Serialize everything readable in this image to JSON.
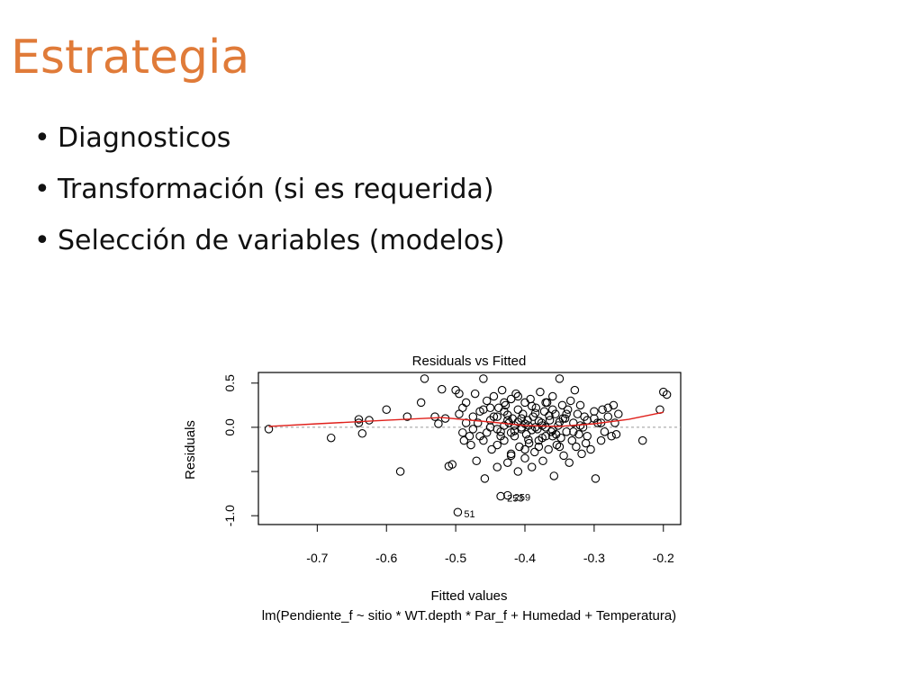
{
  "slide": {
    "title": "Estrategia",
    "bullets": [
      "Diagnosticos",
      "Transformación (si es requerida)",
      "Selección de variables (modelos)"
    ]
  },
  "colors": {
    "title": "#E07B39",
    "smooth": "#E0201B",
    "points": "#000000",
    "zero_line": "#9A9A9A"
  },
  "chart_data": {
    "type": "scatter",
    "title": "Residuals vs Fitted",
    "xlabel": "Fitted values",
    "ylabel": "Residuals",
    "subtitle": "lm(Pendiente_f ~ sitio * WT.depth * Par_f + Humedad + Temperatura)",
    "xlim": [
      -0.785,
      -0.175
    ],
    "ylim": [
      -1.1,
      0.62
    ],
    "x_ticks": [
      -0.7,
      -0.6,
      -0.5,
      -0.4,
      -0.3,
      -0.2
    ],
    "x_tick_labels": [
      "-0.7",
      "-0.6",
      "-0.5",
      "-0.4",
      "-0.3",
      "-0.2"
    ],
    "y_ticks": [
      -1.0,
      -0.5,
      0.0,
      0.5
    ],
    "y_tick_labels": [
      "-1.0",
      "",
      "0.0",
      "0.5"
    ],
    "zero_line": 0.0,
    "smoother": {
      "x": [
        -0.77,
        -0.7,
        -0.6,
        -0.52,
        -0.45,
        -0.4,
        -0.35,
        -0.3,
        -0.25,
        -0.2
      ],
      "y": [
        0.01,
        0.04,
        0.08,
        0.11,
        0.06,
        0.02,
        0.01,
        0.04,
        0.09,
        0.17
      ]
    },
    "labeled_points": [
      {
        "label": "51",
        "x": -0.497,
        "y": -0.96
      },
      {
        "label": "253",
        "x": -0.435,
        "y": -0.78
      },
      {
        "label": "259",
        "x": -0.425,
        "y": -0.77
      }
    ],
    "points": [
      [
        -0.77,
        -0.02
      ],
      [
        -0.68,
        -0.12
      ],
      [
        -0.64,
        0.09
      ],
      [
        -0.64,
        0.05
      ],
      [
        -0.635,
        -0.07
      ],
      [
        -0.625,
        0.08
      ],
      [
        -0.6,
        0.2
      ],
      [
        -0.58,
        -0.5
      ],
      [
        -0.57,
        0.12
      ],
      [
        -0.55,
        0.28
      ],
      [
        -0.545,
        0.55
      ],
      [
        -0.53,
        0.12
      ],
      [
        -0.525,
        0.04
      ],
      [
        -0.52,
        0.43
      ],
      [
        -0.515,
        0.1
      ],
      [
        -0.51,
        -0.44
      ],
      [
        -0.505,
        -0.42
      ],
      [
        -0.5,
        0.42
      ],
      [
        -0.495,
        0.38
      ],
      [
        -0.495,
        0.15
      ],
      [
        -0.49,
        0.22
      ],
      [
        -0.49,
        -0.06
      ],
      [
        -0.488,
        -0.15
      ],
      [
        -0.485,
        0.05
      ],
      [
        -0.48,
        -0.1
      ],
      [
        -0.478,
        -0.2
      ],
      [
        -0.475,
        0.12
      ],
      [
        -0.472,
        0.38
      ],
      [
        -0.47,
        -0.38
      ],
      [
        -0.468,
        0.05
      ],
      [
        -0.465,
        -0.1
      ],
      [
        -0.46,
        0.2
      ],
      [
        -0.46,
        0.55
      ],
      [
        -0.458,
        -0.58
      ],
      [
        -0.455,
        0.3
      ],
      [
        -0.45,
        0.0
      ],
      [
        -0.448,
        -0.25
      ],
      [
        -0.445,
        0.35
      ],
      [
        -0.44,
        0.12
      ],
      [
        -0.44,
        -0.45
      ],
      [
        -0.438,
        0.22
      ],
      [
        -0.435,
        -0.05
      ],
      [
        -0.433,
        0.42
      ],
      [
        -0.43,
        0.18
      ],
      [
        -0.43,
        -0.15
      ],
      [
        -0.428,
        0.25
      ],
      [
        -0.425,
        -0.4
      ],
      [
        -0.423,
        0.05
      ],
      [
        -0.42,
        0.32
      ],
      [
        -0.42,
        -0.3
      ],
      [
        -0.418,
        0.1
      ],
      [
        -0.415,
        -0.1
      ],
      [
        -0.413,
        0.38
      ],
      [
        -0.41,
        -0.5
      ],
      [
        -0.41,
        0.2
      ],
      [
        -0.408,
        -0.22
      ],
      [
        -0.405,
        0.0
      ],
      [
        -0.403,
        0.15
      ],
      [
        -0.4,
        -0.35
      ],
      [
        -0.4,
        0.28
      ],
      [
        -0.398,
        -0.08
      ],
      [
        -0.396,
        0.08
      ],
      [
        -0.394,
        -0.18
      ],
      [
        -0.392,
        0.32
      ],
      [
        -0.39,
        -0.45
      ],
      [
        -0.388,
        0.12
      ],
      [
        -0.386,
        -0.28
      ],
      [
        -0.384,
        0.22
      ],
      [
        -0.382,
        -0.02
      ],
      [
        -0.38,
        -0.15
      ],
      [
        -0.378,
        0.4
      ],
      [
        -0.376,
        0.05
      ],
      [
        -0.374,
        -0.38
      ],
      [
        -0.372,
        0.18
      ],
      [
        -0.37,
        -0.1
      ],
      [
        -0.368,
        0.28
      ],
      [
        -0.366,
        -0.25
      ],
      [
        -0.364,
        0.08
      ],
      [
        -0.362,
        -0.05
      ],
      [
        -0.36,
        0.35
      ],
      [
        -0.358,
        -0.55
      ],
      [
        -0.356,
        0.15
      ],
      [
        -0.354,
        -0.2
      ],
      [
        -0.352,
        0.02
      ],
      [
        -0.35,
        0.55
      ],
      [
        -0.348,
        -0.12
      ],
      [
        -0.346,
        0.25
      ],
      [
        -0.344,
        -0.32
      ],
      [
        -0.342,
        0.1
      ],
      [
        -0.34,
        -0.05
      ],
      [
        -0.338,
        0.2
      ],
      [
        -0.336,
        -0.4
      ],
      [
        -0.334,
        0.3
      ],
      [
        -0.332,
        -0.15
      ],
      [
        -0.33,
        0.05
      ],
      [
        -0.328,
        0.42
      ],
      [
        -0.326,
        -0.22
      ],
      [
        -0.324,
        0.15
      ],
      [
        -0.322,
        -0.08
      ],
      [
        -0.32,
        0.25
      ],
      [
        -0.318,
        -0.3
      ],
      [
        -0.316,
        0.0
      ],
      [
        -0.314,
        0.12
      ],
      [
        -0.312,
        -0.18
      ],
      [
        -0.31,
        0.08
      ],
      [
        -0.305,
        -0.25
      ],
      [
        -0.3,
        0.1
      ],
      [
        -0.298,
        -0.58
      ],
      [
        -0.295,
        0.05
      ],
      [
        -0.29,
        -0.15
      ],
      [
        -0.288,
        0.2
      ],
      [
        -0.285,
        -0.05
      ],
      [
        -0.28,
        0.12
      ],
      [
        -0.275,
        -0.1
      ],
      [
        -0.272,
        0.25
      ],
      [
        -0.27,
        0.05
      ],
      [
        -0.268,
        -0.08
      ],
      [
        -0.265,
        0.15
      ],
      [
        -0.23,
        -0.15
      ],
      [
        -0.205,
        0.2
      ],
      [
        -0.2,
        0.4
      ],
      [
        -0.195,
        0.37
      ],
      [
        -0.45,
        0.08
      ],
      [
        -0.44,
        -0.02
      ],
      [
        -0.43,
        0.02
      ],
      [
        -0.42,
        -0.06
      ],
      [
        -0.41,
        0.06
      ],
      [
        -0.4,
        0.04
      ],
      [
        -0.39,
        -0.03
      ],
      [
        -0.38,
        0.07
      ],
      [
        -0.37,
        0.0
      ],
      [
        -0.36,
        -0.03
      ],
      [
        -0.35,
        0.06
      ],
      [
        -0.345,
        0.1
      ],
      [
        -0.355,
        -0.08
      ],
      [
        -0.365,
        0.13
      ],
      [
        -0.375,
        -0.12
      ],
      [
        -0.385,
        0.16
      ],
      [
        -0.395,
        -0.14
      ],
      [
        -0.405,
        0.1
      ],
      [
        -0.415,
        0.02
      ],
      [
        -0.425,
        0.08
      ],
      [
        -0.435,
        -0.1
      ],
      [
        -0.445,
        0.12
      ],
      [
        -0.455,
        -0.06
      ],
      [
        -0.465,
        0.18
      ],
      [
        -0.475,
        -0.02
      ],
      [
        -0.485,
        0.28
      ],
      [
        -0.395,
        0.02
      ],
      [
        -0.405,
        -0.02
      ],
      [
        -0.385,
        0.0
      ],
      [
        -0.375,
        0.02
      ],
      [
        -0.415,
        -0.04
      ],
      [
        -0.425,
        0.14
      ],
      [
        -0.36,
        0.2
      ],
      [
        -0.34,
        0.15
      ],
      [
        -0.33,
        -0.05
      ],
      [
        -0.32,
        0.02
      ],
      [
        -0.31,
        -0.1
      ],
      [
        -0.3,
        0.18
      ],
      [
        -0.29,
        0.05
      ],
      [
        -0.28,
        0.22
      ],
      [
        -0.35,
        -0.22
      ],
      [
        -0.36,
        -0.1
      ],
      [
        -0.37,
        0.28
      ],
      [
        -0.38,
        -0.22
      ],
      [
        -0.39,
        0.24
      ],
      [
        -0.4,
        -0.25
      ],
      [
        -0.41,
        0.35
      ],
      [
        -0.42,
        -0.32
      ],
      [
        -0.43,
        0.28
      ],
      [
        -0.44,
        -0.2
      ],
      [
        -0.45,
        0.22
      ],
      [
        -0.46,
        -0.15
      ]
    ]
  }
}
